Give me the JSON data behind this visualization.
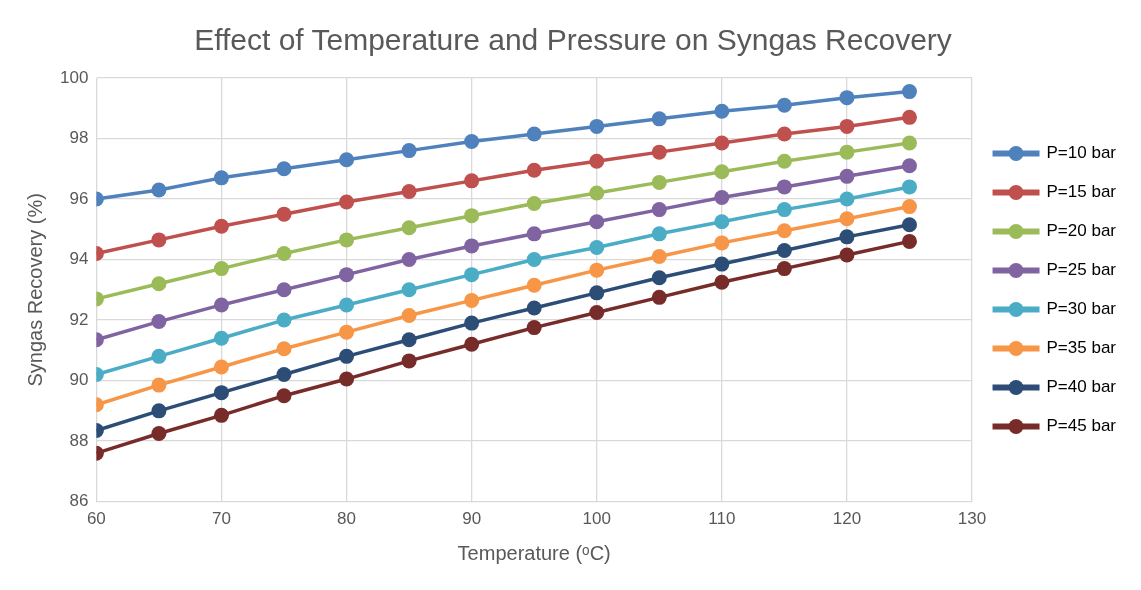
{
  "chart_data": {
    "type": "line",
    "title": "Effect of Temperature and Pressure on Syngas Recovery",
    "xlabel": "Temperature (ᵒC)",
    "ylabel": "Syngas Recovery (%)",
    "x": [
      60,
      65,
      70,
      75,
      80,
      85,
      90,
      95,
      100,
      105,
      110,
      115,
      120,
      125
    ],
    "xlim": [
      60,
      130
    ],
    "xticks": [
      60,
      70,
      80,
      90,
      100,
      110,
      120,
      130
    ],
    "ylim": [
      86,
      100
    ],
    "yticks": [
      86,
      88,
      90,
      92,
      94,
      96,
      98,
      100
    ],
    "grid": true,
    "legend": "right",
    "marker": "circle",
    "line_style": "solid",
    "series": [
      {
        "name": "P=10 bar",
        "color": "#4f81bd",
        "values": [
          96.0,
          96.3,
          96.7,
          97.0,
          97.3,
          97.6,
          97.9,
          98.15,
          98.4,
          98.65,
          98.9,
          99.1,
          99.35,
          99.55
        ]
      },
      {
        "name": "P=15 bar",
        "color": "#c0504d",
        "values": [
          94.2,
          94.65,
          95.1,
          95.5,
          95.9,
          96.25,
          96.6,
          96.95,
          97.25,
          97.55,
          97.85,
          98.15,
          98.4,
          98.7
        ]
      },
      {
        "name": "P=20 bar",
        "color": "#9bbb59",
        "values": [
          92.7,
          93.2,
          93.7,
          94.2,
          94.65,
          95.05,
          95.45,
          95.85,
          96.2,
          96.55,
          96.9,
          97.25,
          97.55,
          97.85
        ]
      },
      {
        "name": "P=25 bar",
        "color": "#8064a2",
        "values": [
          91.35,
          91.95,
          92.5,
          93.0,
          93.5,
          94.0,
          94.45,
          94.85,
          95.25,
          95.65,
          96.05,
          96.4,
          96.75,
          97.1
        ]
      },
      {
        "name": "P=30 bar",
        "color": "#4bacc6",
        "values": [
          90.2,
          90.8,
          91.4,
          92.0,
          92.5,
          93.0,
          93.5,
          94.0,
          94.4,
          94.85,
          95.25,
          95.65,
          96.0,
          96.4
        ]
      },
      {
        "name": "P=35 bar",
        "color": "#f79646",
        "values": [
          89.2,
          89.85,
          90.45,
          91.05,
          91.6,
          92.15,
          92.65,
          93.15,
          93.65,
          94.1,
          94.55,
          94.95,
          95.35,
          95.75
        ]
      },
      {
        "name": "P=40 bar",
        "color": "#2c4d75",
        "values": [
          88.35,
          89.0,
          89.6,
          90.2,
          90.8,
          91.35,
          91.9,
          92.4,
          92.9,
          93.4,
          93.85,
          94.3,
          94.75,
          95.15
        ]
      },
      {
        "name": "P=45 bar",
        "color": "#772c2a",
        "values": [
          87.6,
          88.25,
          88.85,
          89.5,
          90.05,
          90.65,
          91.2,
          91.75,
          92.25,
          92.75,
          93.25,
          93.7,
          94.15,
          94.6
        ]
      }
    ]
  }
}
